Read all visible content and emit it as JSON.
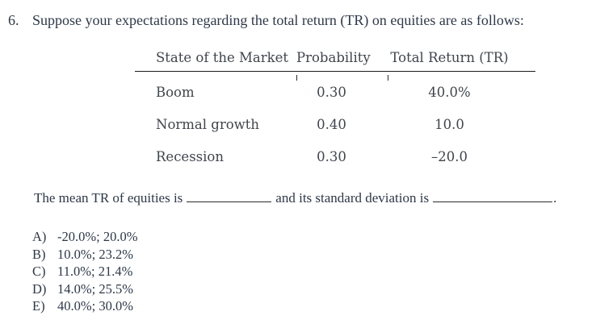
{
  "question": {
    "number": "6.",
    "text": "Suppose your expectations regarding the total return (TR) on equities are as follows:"
  },
  "table": {
    "headers": {
      "state": "State of the Market",
      "probability": "Probability",
      "total_return": "Total Return (TR)"
    },
    "rows": [
      {
        "state": "Boom",
        "probability": "0.30",
        "total_return": "40.0%"
      },
      {
        "state": "Normal growth",
        "probability": "0.40",
        "total_return": "10.0"
      },
      {
        "state": "Recession",
        "probability": "0.30",
        "total_return": "–20.0"
      }
    ]
  },
  "fill_in": {
    "before_first_blank": "The mean TR of equities is",
    "between_blanks": "and its standard deviation is",
    "after_second_blank": "."
  },
  "choices": [
    {
      "label": "A)",
      "text": "-20.0%; 20.0%"
    },
    {
      "label": "B)",
      "text": "10.0%; 23.2%"
    },
    {
      "label": "C)",
      "text": "11.0%; 21.4%"
    },
    {
      "label": "D)",
      "text": "14.0%; 25.5%"
    },
    {
      "label": "E)",
      "text": "40.0%; 30.0%"
    }
  ],
  "colors": {
    "body_text": "#2d3848",
    "table_text": "#40454c",
    "rule": "#1c1c1c",
    "background": "#ffffff"
  }
}
